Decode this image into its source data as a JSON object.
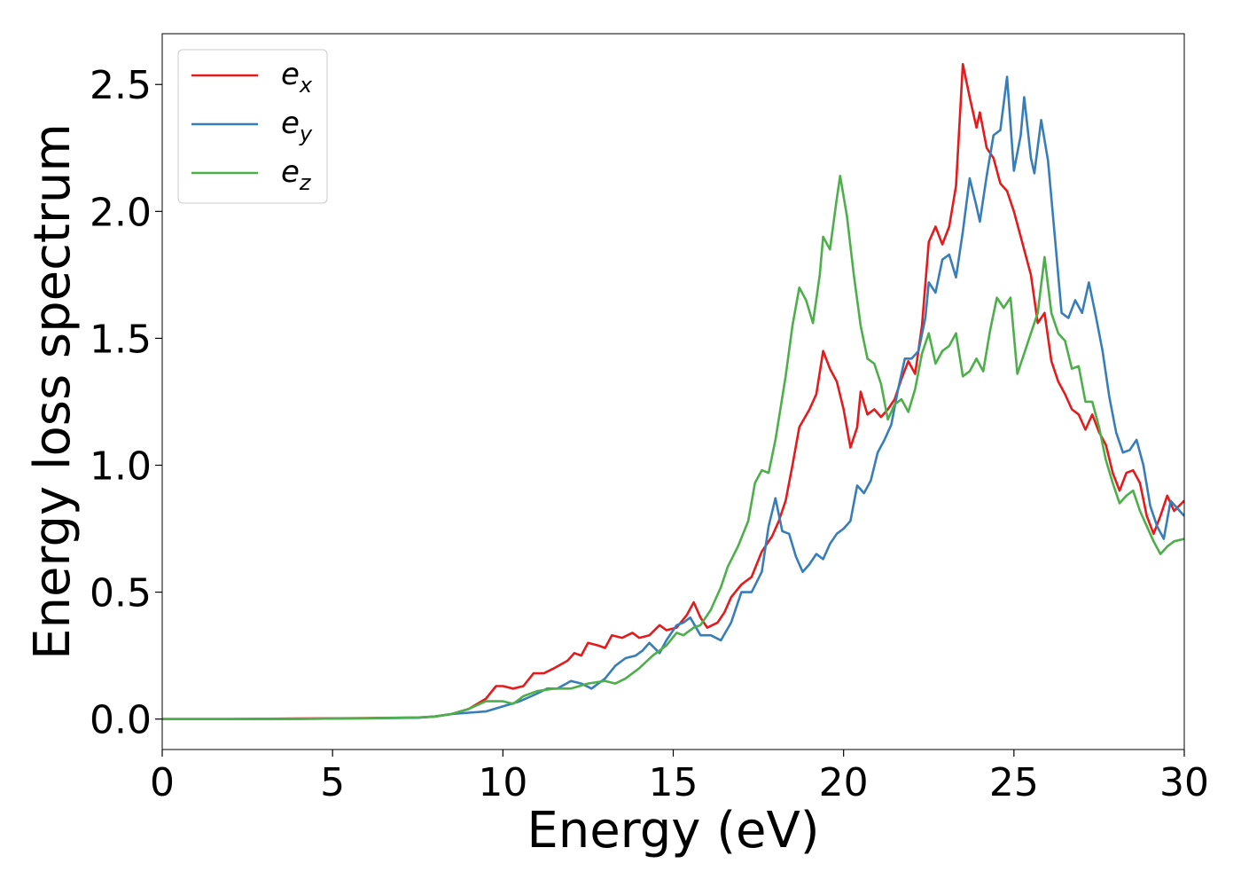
{
  "chart_data": {
    "type": "line",
    "xlabel": "Energy (eV)",
    "ylabel": "Energy loss spectrum",
    "xlim": [
      0,
      30
    ],
    "ylim": [
      -0.12,
      2.7
    ],
    "x_ticks": [
      0,
      5,
      10,
      15,
      20,
      25,
      30
    ],
    "y_ticks": [
      0.0,
      0.5,
      1.0,
      1.5,
      2.0,
      2.5
    ],
    "x_tick_labels": [
      "0",
      "5",
      "10",
      "15",
      "20",
      "25",
      "30"
    ],
    "y_tick_labels": [
      "0.0",
      "0.5",
      "1.0",
      "1.5",
      "2.0",
      "2.5"
    ],
    "grid": false,
    "legend_position": "top-left",
    "series": [
      {
        "name": "e_x",
        "legend_base": "e",
        "legend_sub": "x",
        "color": "#e41a1c",
        "points": [
          [
            0,
            0.0
          ],
          [
            2,
            0.0
          ],
          [
            4,
            0.002
          ],
          [
            6,
            0.004
          ],
          [
            7.5,
            0.006
          ],
          [
            8,
            0.01
          ],
          [
            8.5,
            0.02
          ],
          [
            9,
            0.04
          ],
          [
            9.5,
            0.08
          ],
          [
            9.8,
            0.13
          ],
          [
            10,
            0.13
          ],
          [
            10.3,
            0.12
          ],
          [
            10.6,
            0.13
          ],
          [
            10.9,
            0.18
          ],
          [
            11.2,
            0.18
          ],
          [
            11.5,
            0.2
          ],
          [
            11.9,
            0.23
          ],
          [
            12.1,
            0.26
          ],
          [
            12.3,
            0.25
          ],
          [
            12.5,
            0.3
          ],
          [
            12.8,
            0.29
          ],
          [
            13.0,
            0.28
          ],
          [
            13.2,
            0.33
          ],
          [
            13.5,
            0.32
          ],
          [
            13.8,
            0.34
          ],
          [
            14.0,
            0.32
          ],
          [
            14.3,
            0.33
          ],
          [
            14.6,
            0.37
          ],
          [
            14.8,
            0.35
          ],
          [
            15.1,
            0.36
          ],
          [
            15.4,
            0.41
          ],
          [
            15.6,
            0.46
          ],
          [
            15.8,
            0.4
          ],
          [
            16.0,
            0.36
          ],
          [
            16.3,
            0.38
          ],
          [
            16.5,
            0.42
          ],
          [
            16.7,
            0.48
          ],
          [
            17.0,
            0.53
          ],
          [
            17.3,
            0.56
          ],
          [
            17.6,
            0.66
          ],
          [
            17.9,
            0.72
          ],
          [
            18.1,
            0.78
          ],
          [
            18.3,
            0.86
          ],
          [
            18.5,
            1.0
          ],
          [
            18.7,
            1.15
          ],
          [
            19.0,
            1.22
          ],
          [
            19.2,
            1.28
          ],
          [
            19.4,
            1.45
          ],
          [
            19.6,
            1.38
          ],
          [
            19.8,
            1.33
          ],
          [
            20.0,
            1.22
          ],
          [
            20.2,
            1.07
          ],
          [
            20.4,
            1.15
          ],
          [
            20.5,
            1.29
          ],
          [
            20.7,
            1.2
          ],
          [
            20.9,
            1.22
          ],
          [
            21.1,
            1.19
          ],
          [
            21.3,
            1.22
          ],
          [
            21.5,
            1.26
          ],
          [
            21.7,
            1.34
          ],
          [
            21.9,
            1.41
          ],
          [
            22.1,
            1.36
          ],
          [
            22.3,
            1.55
          ],
          [
            22.5,
            1.88
          ],
          [
            22.7,
            1.94
          ],
          [
            22.9,
            1.87
          ],
          [
            23.1,
            1.94
          ],
          [
            23.3,
            2.1
          ],
          [
            23.5,
            2.58
          ],
          [
            23.7,
            2.45
          ],
          [
            23.9,
            2.33
          ],
          [
            24.0,
            2.39
          ],
          [
            24.2,
            2.25
          ],
          [
            24.4,
            2.21
          ],
          [
            24.6,
            2.11
          ],
          [
            24.8,
            2.08
          ],
          [
            25.0,
            2.0
          ],
          [
            25.2,
            1.9
          ],
          [
            25.5,
            1.75
          ],
          [
            25.7,
            1.56
          ],
          [
            25.9,
            1.6
          ],
          [
            26.1,
            1.41
          ],
          [
            26.3,
            1.33
          ],
          [
            26.5,
            1.28
          ],
          [
            26.7,
            1.22
          ],
          [
            26.9,
            1.2
          ],
          [
            27.1,
            1.14
          ],
          [
            27.3,
            1.2
          ],
          [
            27.5,
            1.13
          ],
          [
            27.7,
            1.08
          ],
          [
            27.9,
            0.97
          ],
          [
            28.1,
            0.9
          ],
          [
            28.3,
            0.97
          ],
          [
            28.5,
            0.98
          ],
          [
            28.7,
            0.93
          ],
          [
            28.9,
            0.8
          ],
          [
            29.1,
            0.73
          ],
          [
            29.3,
            0.8
          ],
          [
            29.5,
            0.88
          ],
          [
            29.7,
            0.82
          ],
          [
            30,
            0.86
          ]
        ]
      },
      {
        "name": "e_y",
        "legend_base": "e",
        "legend_sub": "y",
        "color": "#377eb8",
        "points": [
          [
            0,
            0.0
          ],
          [
            2,
            0.0
          ],
          [
            4,
            0.001
          ],
          [
            6,
            0.003
          ],
          [
            7.5,
            0.005
          ],
          [
            8,
            0.01
          ],
          [
            8.5,
            0.02
          ],
          [
            9,
            0.025
          ],
          [
            9.5,
            0.03
          ],
          [
            10,
            0.05
          ],
          [
            10.5,
            0.07
          ],
          [
            11,
            0.1
          ],
          [
            11.3,
            0.12
          ],
          [
            11.6,
            0.12
          ],
          [
            12,
            0.15
          ],
          [
            12.3,
            0.14
          ],
          [
            12.6,
            0.12
          ],
          [
            13,
            0.16
          ],
          [
            13.3,
            0.21
          ],
          [
            13.6,
            0.24
          ],
          [
            13.9,
            0.25
          ],
          [
            14.1,
            0.27
          ],
          [
            14.3,
            0.3
          ],
          [
            14.6,
            0.26
          ],
          [
            14.8,
            0.31
          ],
          [
            15.1,
            0.37
          ],
          [
            15.3,
            0.38
          ],
          [
            15.5,
            0.4
          ],
          [
            15.8,
            0.33
          ],
          [
            16.1,
            0.33
          ],
          [
            16.4,
            0.31
          ],
          [
            16.7,
            0.38
          ],
          [
            17.0,
            0.5
          ],
          [
            17.3,
            0.5
          ],
          [
            17.6,
            0.58
          ],
          [
            17.8,
            0.76
          ],
          [
            18.0,
            0.87
          ],
          [
            18.2,
            0.74
          ],
          [
            18.4,
            0.73
          ],
          [
            18.6,
            0.64
          ],
          [
            18.8,
            0.58
          ],
          [
            19.0,
            0.61
          ],
          [
            19.2,
            0.65
          ],
          [
            19.4,
            0.63
          ],
          [
            19.6,
            0.69
          ],
          [
            19.8,
            0.73
          ],
          [
            20.0,
            0.75
          ],
          [
            20.2,
            0.78
          ],
          [
            20.4,
            0.92
          ],
          [
            20.6,
            0.89
          ],
          [
            20.8,
            0.94
          ],
          [
            21.0,
            1.05
          ],
          [
            21.2,
            1.1
          ],
          [
            21.4,
            1.16
          ],
          [
            21.6,
            1.3
          ],
          [
            21.8,
            1.42
          ],
          [
            22.0,
            1.42
          ],
          [
            22.2,
            1.45
          ],
          [
            22.4,
            1.58
          ],
          [
            22.5,
            1.72
          ],
          [
            22.7,
            1.68
          ],
          [
            22.9,
            1.81
          ],
          [
            23.1,
            1.83
          ],
          [
            23.3,
            1.74
          ],
          [
            23.5,
            1.92
          ],
          [
            23.7,
            2.13
          ],
          [
            23.9,
            2.02
          ],
          [
            24.0,
            1.96
          ],
          [
            24.2,
            2.14
          ],
          [
            24.4,
            2.3
          ],
          [
            24.6,
            2.32
          ],
          [
            24.8,
            2.53
          ],
          [
            25.0,
            2.16
          ],
          [
            25.2,
            2.3
          ],
          [
            25.3,
            2.45
          ],
          [
            25.5,
            2.21
          ],
          [
            25.6,
            2.15
          ],
          [
            25.8,
            2.36
          ],
          [
            26.0,
            2.2
          ],
          [
            26.2,
            1.9
          ],
          [
            26.4,
            1.6
          ],
          [
            26.6,
            1.58
          ],
          [
            26.8,
            1.65
          ],
          [
            27.0,
            1.6
          ],
          [
            27.2,
            1.72
          ],
          [
            27.4,
            1.59
          ],
          [
            27.6,
            1.45
          ],
          [
            27.8,
            1.27
          ],
          [
            28.0,
            1.13
          ],
          [
            28.2,
            1.05
          ],
          [
            28.4,
            1.06
          ],
          [
            28.6,
            1.1
          ],
          [
            28.8,
            1.0
          ],
          [
            29.0,
            0.84
          ],
          [
            29.2,
            0.76
          ],
          [
            29.4,
            0.71
          ],
          [
            29.6,
            0.86
          ],
          [
            29.8,
            0.83
          ],
          [
            30,
            0.8
          ]
        ]
      },
      {
        "name": "e_z",
        "legend_base": "e",
        "legend_sub": "z",
        "color": "#4daf4a",
        "points": [
          [
            0,
            0.0
          ],
          [
            2,
            0.0
          ],
          [
            4,
            0.001
          ],
          [
            6,
            0.003
          ],
          [
            7.5,
            0.006
          ],
          [
            8,
            0.01
          ],
          [
            8.5,
            0.02
          ],
          [
            9,
            0.04
          ],
          [
            9.5,
            0.07
          ],
          [
            10,
            0.07
          ],
          [
            10.3,
            0.06
          ],
          [
            10.6,
            0.09
          ],
          [
            11,
            0.11
          ],
          [
            11.5,
            0.12
          ],
          [
            12,
            0.12
          ],
          [
            12.5,
            0.14
          ],
          [
            13,
            0.15
          ],
          [
            13.3,
            0.14
          ],
          [
            13.6,
            0.16
          ],
          [
            14,
            0.2
          ],
          [
            14.4,
            0.25
          ],
          [
            14.8,
            0.29
          ],
          [
            15.1,
            0.34
          ],
          [
            15.3,
            0.33
          ],
          [
            15.6,
            0.36
          ],
          [
            15.8,
            0.37
          ],
          [
            16.1,
            0.43
          ],
          [
            16.4,
            0.52
          ],
          [
            16.6,
            0.6
          ],
          [
            16.9,
            0.68
          ],
          [
            17.2,
            0.78
          ],
          [
            17.4,
            0.93
          ],
          [
            17.6,
            0.98
          ],
          [
            17.8,
            0.97
          ],
          [
            18.0,
            1.1
          ],
          [
            18.3,
            1.35
          ],
          [
            18.5,
            1.55
          ],
          [
            18.7,
            1.7
          ],
          [
            18.9,
            1.65
          ],
          [
            19.1,
            1.56
          ],
          [
            19.3,
            1.75
          ],
          [
            19.4,
            1.9
          ],
          [
            19.6,
            1.85
          ],
          [
            19.8,
            2.05
          ],
          [
            19.9,
            2.14
          ],
          [
            20.1,
            1.98
          ],
          [
            20.3,
            1.75
          ],
          [
            20.5,
            1.55
          ],
          [
            20.7,
            1.42
          ],
          [
            20.9,
            1.4
          ],
          [
            21.1,
            1.32
          ],
          [
            21.3,
            1.18
          ],
          [
            21.5,
            1.24
          ],
          [
            21.7,
            1.26
          ],
          [
            21.9,
            1.21
          ],
          [
            22.1,
            1.3
          ],
          [
            22.3,
            1.44
          ],
          [
            22.5,
            1.52
          ],
          [
            22.7,
            1.4
          ],
          [
            22.9,
            1.45
          ],
          [
            23.1,
            1.47
          ],
          [
            23.3,
            1.52
          ],
          [
            23.5,
            1.35
          ],
          [
            23.7,
            1.37
          ],
          [
            23.9,
            1.42
          ],
          [
            24.1,
            1.37
          ],
          [
            24.3,
            1.53
          ],
          [
            24.5,
            1.66
          ],
          [
            24.7,
            1.62
          ],
          [
            24.9,
            1.66
          ],
          [
            25.1,
            1.36
          ],
          [
            25.3,
            1.44
          ],
          [
            25.5,
            1.52
          ],
          [
            25.7,
            1.6
          ],
          [
            25.9,
            1.82
          ],
          [
            26.1,
            1.6
          ],
          [
            26.3,
            1.52
          ],
          [
            26.5,
            1.49
          ],
          [
            26.7,
            1.38
          ],
          [
            26.9,
            1.39
          ],
          [
            27.1,
            1.25
          ],
          [
            27.3,
            1.25
          ],
          [
            27.5,
            1.15
          ],
          [
            27.7,
            1.02
          ],
          [
            27.9,
            0.93
          ],
          [
            28.1,
            0.85
          ],
          [
            28.3,
            0.88
          ],
          [
            28.5,
            0.9
          ],
          [
            28.7,
            0.82
          ],
          [
            28.9,
            0.76
          ],
          [
            29.1,
            0.7
          ],
          [
            29.3,
            0.65
          ],
          [
            29.5,
            0.68
          ],
          [
            29.7,
            0.7
          ],
          [
            30,
            0.71
          ]
        ]
      }
    ]
  }
}
